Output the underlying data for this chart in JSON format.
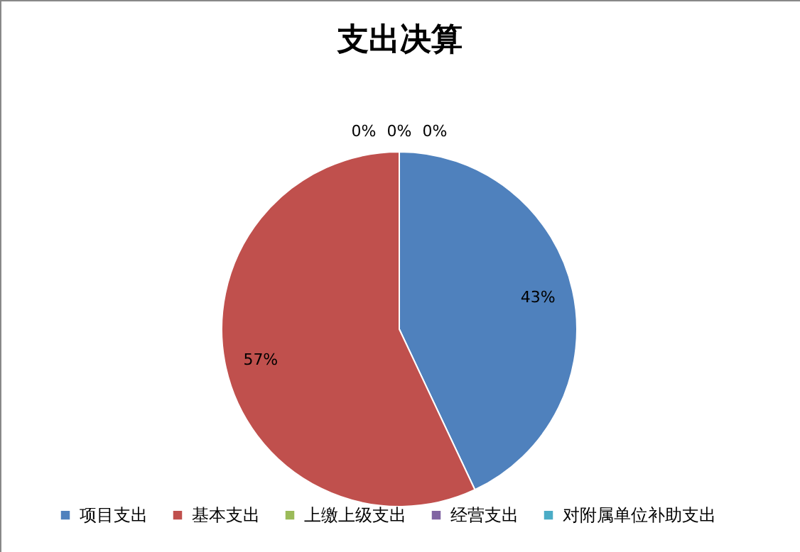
{
  "chart_data": {
    "type": "pie",
    "title": "支出决算",
    "categories": [
      "项目支出",
      "基本支出",
      "上缴上级支出",
      "经营支出",
      "对附属单位补助支出"
    ],
    "values": [
      43,
      57,
      0,
      0,
      0
    ],
    "colors": [
      "#4f81bd",
      "#c0504d",
      "#9bbb59",
      "#8064a2",
      "#4bacc6"
    ],
    "value_labels": [
      "43%",
      "57%",
      "0%",
      "0%",
      "0%"
    ],
    "legend": "bottom"
  }
}
